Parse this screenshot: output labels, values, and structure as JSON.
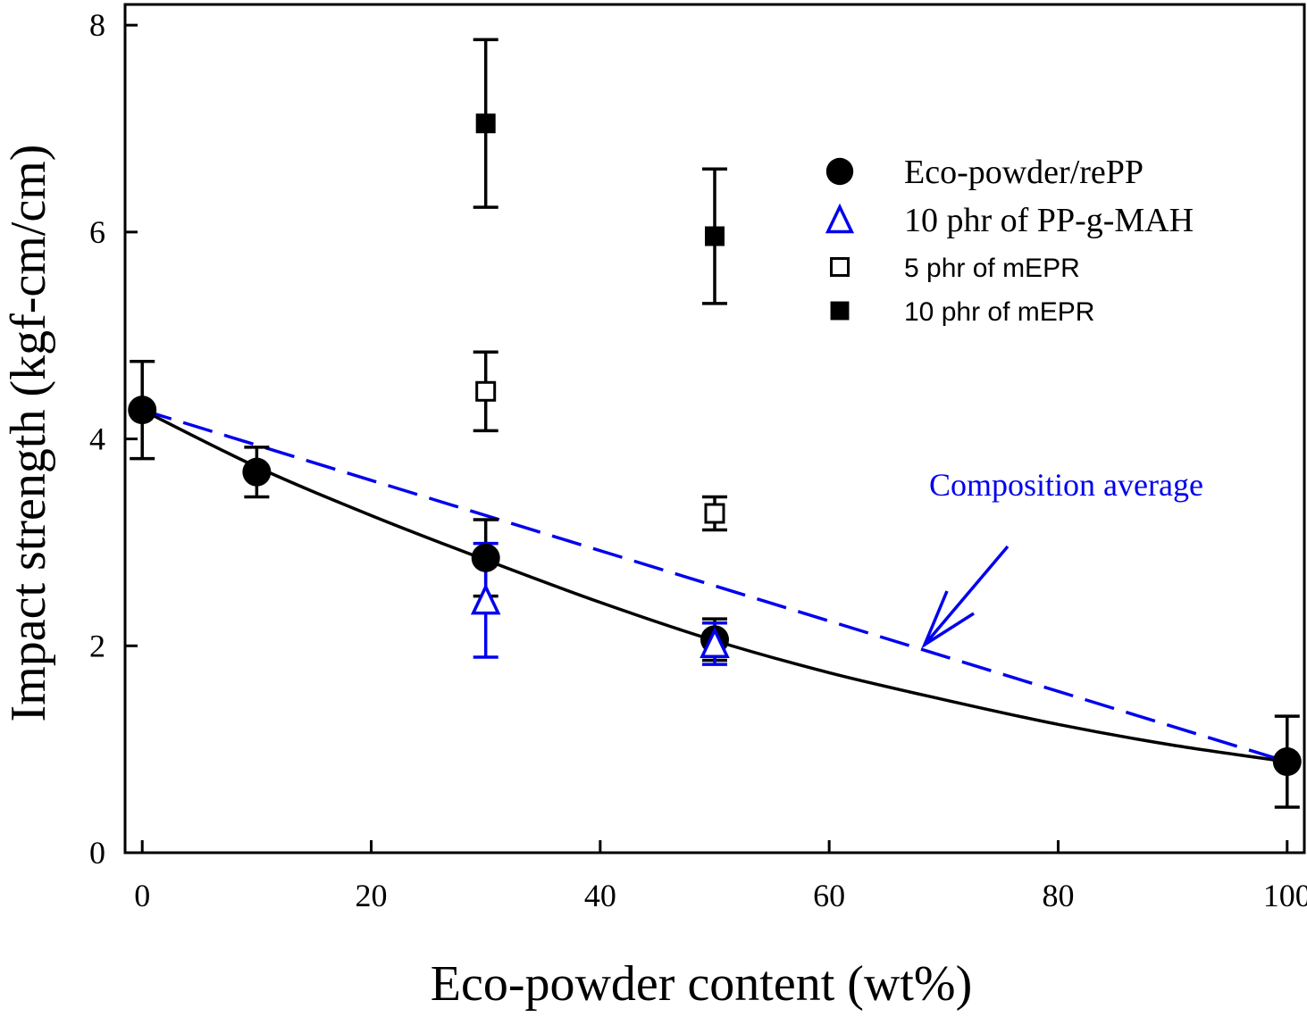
{
  "chart_data": {
    "type": "scatter",
    "xlabel": "Eco-powder content (wt%)",
    "ylabel": "Impact strength (kgf-cm/cm)",
    "xlim": [
      -1.5,
      101.5
    ],
    "ylim": [
      0,
      8.2
    ],
    "x_ticks": [
      0,
      20,
      40,
      60,
      80,
      100
    ],
    "y_ticks": [
      0,
      2,
      4,
      6,
      8
    ],
    "grid": false,
    "legend_position": "top-right",
    "series": [
      {
        "name": "Eco-powder/rePP",
        "marker": "filled-circle",
        "color": "#000000",
        "x": [
          0,
          10,
          30,
          50,
          100
        ],
        "y": [
          4.28,
          3.68,
          2.85,
          2.06,
          0.88
        ],
        "err": [
          0.47,
          0.24,
          0.37,
          0.2,
          0.44
        ]
      },
      {
        "name": "10 phr of PP-g-MAH",
        "marker": "open-triangle",
        "color": "#0000ee",
        "x": [
          30,
          50
        ],
        "y": [
          2.44,
          2.02
        ],
        "err": [
          0.55,
          0.2
        ]
      },
      {
        "name": "5 phr of mEPR",
        "marker": "open-square",
        "color": "#000000",
        "x": [
          30,
          50
        ],
        "y": [
          4.46,
          3.28
        ],
        "err": [
          0.38,
          0.16
        ]
      },
      {
        "name": "10 phr of mEPR",
        "marker": "filled-square",
        "color": "#000000",
        "x": [
          30,
          50
        ],
        "y": [
          7.05,
          5.96
        ],
        "err": [
          0.81,
          0.65
        ]
      }
    ],
    "lines": [
      {
        "kind": "fit-curve",
        "color": "#000000",
        "style": "solid",
        "x": [
          0,
          10,
          20,
          30,
          40,
          50,
          60,
          70,
          80,
          90,
          100
        ],
        "y": [
          4.28,
          3.73,
          3.26,
          2.83,
          2.42,
          2.05,
          1.74,
          1.48,
          1.24,
          1.04,
          0.88
        ]
      },
      {
        "kind": "composition-average",
        "color": "#0000ee",
        "style": "dashed",
        "x": [
          0,
          100
        ],
        "y": [
          4.28,
          0.88
        ]
      }
    ],
    "annotations": [
      {
        "text": "Composition average",
        "color": "#0000ee"
      }
    ]
  }
}
